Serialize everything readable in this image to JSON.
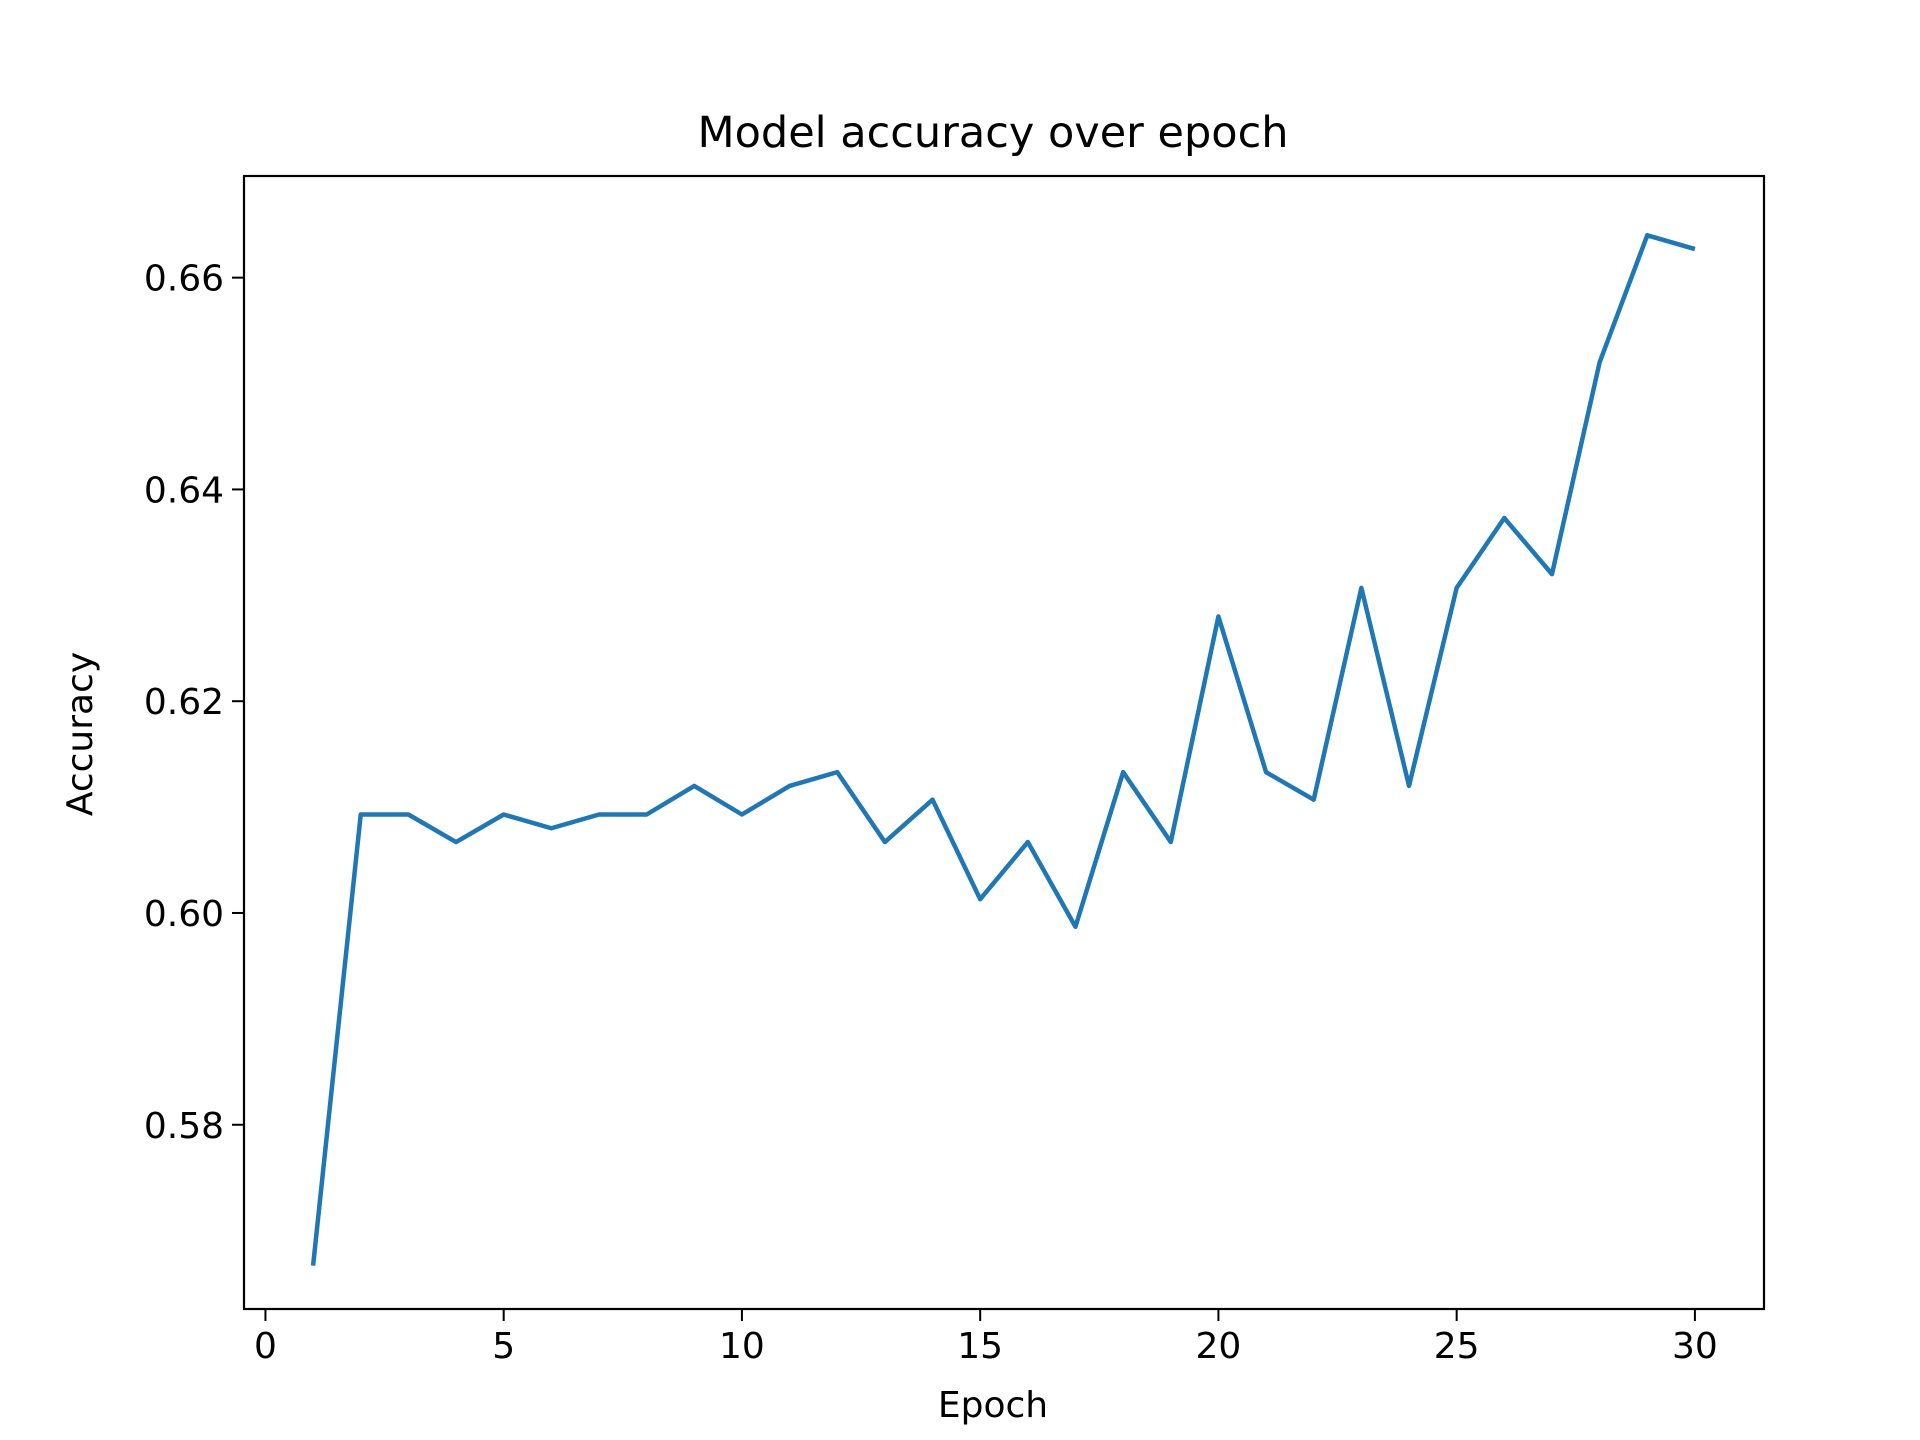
{
  "chart_data": {
    "type": "line",
    "title": "Model accuracy over epoch",
    "xlabel": "Epoch",
    "ylabel": "Accuracy",
    "xlim": [
      -0.45,
      31.45
    ],
    "ylim": [
      0.5626,
      0.6696
    ],
    "xticks": [
      0,
      5,
      10,
      15,
      20,
      25,
      30
    ],
    "xtick_labels": [
      "0",
      "5",
      "10",
      "15",
      "20",
      "25",
      "30"
    ],
    "yticks": [
      0.58,
      0.6,
      0.62,
      0.64,
      0.66
    ],
    "ytick_labels": [
      "0.58",
      "0.60",
      "0.62",
      "0.64",
      "0.66"
    ],
    "grid": false,
    "series": [
      {
        "color": "#1f77b4",
        "x": [
          1,
          2,
          3,
          4,
          5,
          6,
          7,
          8,
          9,
          10,
          11,
          12,
          13,
          14,
          15,
          16,
          17,
          18,
          19,
          20,
          21,
          22,
          23,
          24,
          25,
          26,
          27,
          28,
          29,
          30
        ],
        "y": [
          0.5667,
          0.6093,
          0.6093,
          0.6067,
          0.6093,
          0.608,
          0.6093,
          0.6093,
          0.612,
          0.6093,
          0.612,
          0.6133,
          0.6067,
          0.6107,
          0.6013,
          0.6067,
          0.5987,
          0.6133,
          0.6067,
          0.628,
          0.6133,
          0.6107,
          0.6307,
          0.612,
          0.6307,
          0.6373,
          0.632,
          0.652,
          0.664,
          0.6627
        ]
      }
    ]
  }
}
